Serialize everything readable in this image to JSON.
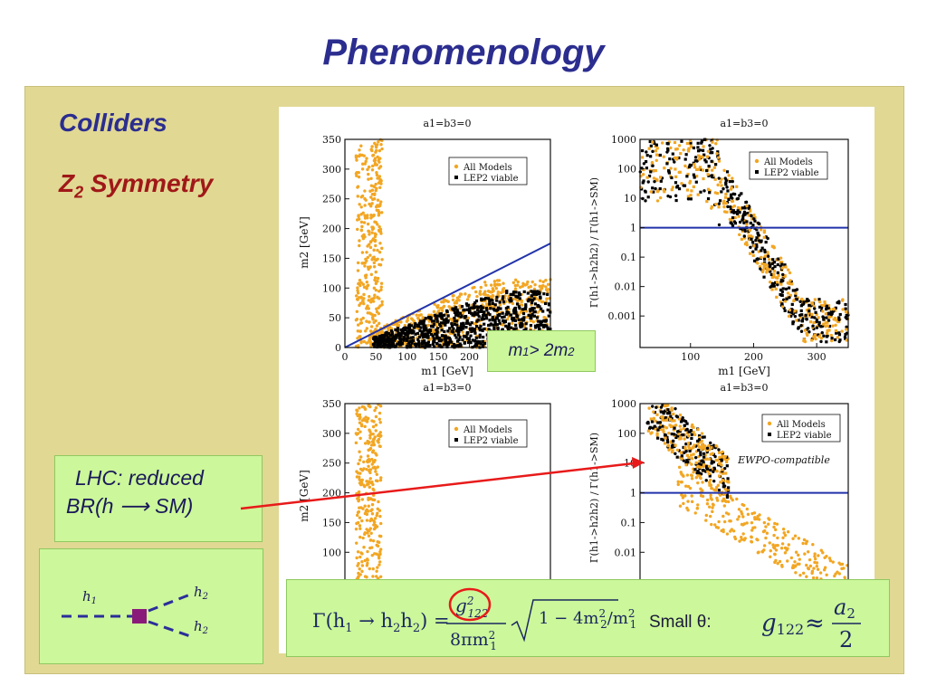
{
  "title": "Phenomenology",
  "sidebar": {
    "colliders": "Colliders",
    "z2_prefix": "Z",
    "z2_sub": "2",
    "z2_suffix": " Symmetry"
  },
  "callouts": {
    "m_condition": {
      "m1": "m",
      "m1_sub": "1",
      "gt": " > 2 ",
      "m2": "m",
      "m2_sub": "2"
    },
    "lhc_line1": "LHC: reduced",
    "lhc_line2": "BR(h ⟶ SM)"
  },
  "feynman": {
    "h1": "h",
    "h1_sub": "1",
    "h2": "h",
    "h2_sub": "2"
  },
  "formula": {
    "gamma_lhs": "Γ(h",
    "numerator": "g",
    "numerator_sup": "2",
    "numerator_sub": "122",
    "denominator": "8πm",
    "sqrt_body": "1 − 4m",
    "small_theta": "Small θ:",
    "g_lhs": "g",
    "g_sub": "122",
    "approx": "≈",
    "a2": "a",
    "a2_sub": "2",
    "den2": "2"
  },
  "plots": {
    "panel_title": "a1=b3=0",
    "legend_all": "All Models",
    "legend_lep2": "LEP2 viable",
    "ewpo": "EWPO-compatible",
    "xlabel_m1": "m1 [GeV]",
    "ylabel_m2": "m2 [GeV]",
    "ylabel_gamma": "Γ(h1->h2h2) / Γ(h1->SM)",
    "m2_ticks": [
      "350",
      "300",
      "250",
      "200",
      "150",
      "100",
      "50",
      "0"
    ],
    "m1_ticks_left": [
      "0",
      "50",
      "100",
      "150",
      "200"
    ],
    "gamma_ticks": [
      "1000",
      "100",
      "10",
      "1",
      "0.1",
      "0.01",
      "0.001"
    ],
    "m1_ticks_right": [
      "100",
      "200",
      "300"
    ]
  },
  "chart_data": [
    {
      "type": "scatter",
      "title": "a1=b3=0",
      "xlabel": "m1 [GeV]",
      "ylabel": "m2 [GeV]",
      "xlim": [
        0,
        330
      ],
      "ylim": [
        0,
        350
      ],
      "series": [
        {
          "name": "All Models",
          "color": "#f2a623"
        },
        {
          "name": "LEP2 viable",
          "color": "#000000"
        }
      ],
      "reference_line": {
        "label": "m1 = 2 m2",
        "points": [
          [
            0,
            0
          ],
          [
            330,
            175
          ]
        ]
      }
    },
    {
      "type": "scatter",
      "title": "a1=b3=0",
      "xlabel": "m1 [GeV]",
      "ylabel": "Γ(h1->h2h2) / Γ(h1->SM)",
      "scale": "log",
      "xlim": [
        20,
        350
      ],
      "ylim": [
        0.0001,
        1000
      ],
      "series": [
        {
          "name": "All Models",
          "color": "#f2a623"
        },
        {
          "name": "LEP2 viable",
          "color": "#000000"
        }
      ],
      "reference_line": {
        "y": 1
      }
    },
    {
      "type": "scatter",
      "title": "a1=b3=0",
      "ylabel": "m2 [GeV]",
      "ylim": [
        0,
        350
      ],
      "series": [
        {
          "name": "All Models",
          "color": "#f2a623"
        },
        {
          "name": "LEP2 viable",
          "color": "#000000"
        }
      ]
    },
    {
      "type": "scatter",
      "title": "a1=b3=0",
      "ylabel": "Γ(h1->h2h2) / Γ(h1->SM)",
      "scale": "log",
      "annotation": "EWPO-compatible",
      "series": [
        {
          "name": "All Models",
          "color": "#f2a623"
        },
        {
          "name": "LEP2 viable",
          "color": "#000000"
        }
      ],
      "reference_line": {
        "y": 1
      }
    }
  ]
}
